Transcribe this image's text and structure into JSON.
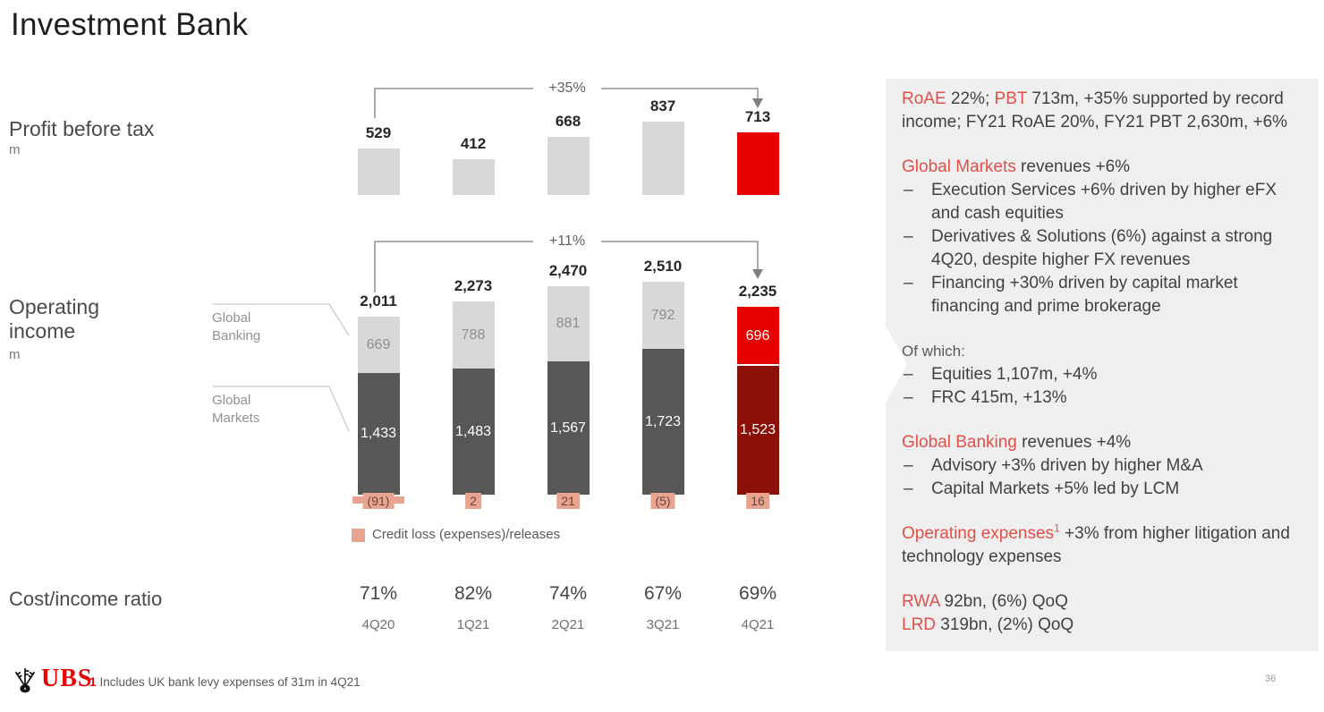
{
  "slide": {
    "title": "Investment Bank",
    "page_number": "36"
  },
  "colors": {
    "bar_gray": "#d8d8d8",
    "bar_dark_gray": "#575757",
    "bar_red": "#e60000",
    "bar_dark_red": "#8a1008",
    "salmon": "#e9a48f",
    "panel_bg": "#efefef",
    "accent_text_red": "#e0514a"
  },
  "left_labels": {
    "pbt": "Profit before tax",
    "pbt_unit": "m",
    "oi_line1": "Operating",
    "oi_line2": "income",
    "oi_unit": "m"
  },
  "series_callouts": {
    "gb": [
      "Global",
      "Banking"
    ],
    "gm": [
      "Global",
      "Markets"
    ]
  },
  "chart_data": [
    {
      "type": "bar",
      "name": "profit_before_tax",
      "title": "Profit before tax",
      "unit": "m",
      "categories": [
        "4Q20",
        "1Q21",
        "2Q21",
        "3Q21",
        "4Q21"
      ],
      "values": [
        529,
        412,
        668,
        837,
        713
      ],
      "value_labels": [
        "529",
        "412",
        "668",
        "837",
        "713"
      ],
      "highlight_index": 4,
      "annotation": "+35%",
      "annotation_span": [
        "4Q20",
        "4Q21"
      ]
    },
    {
      "type": "stacked-bar",
      "name": "operating_income",
      "title": "Operating income",
      "unit": "m",
      "categories": [
        "4Q20",
        "1Q21",
        "2Q21",
        "3Q21",
        "4Q21"
      ],
      "series": [
        {
          "name": "Global Markets",
          "values": [
            1433,
            1483,
            1567,
            1723,
            1523
          ],
          "labels": [
            "1,433",
            "1,483",
            "1,567",
            "1,723",
            "1,523"
          ]
        },
        {
          "name": "Global Banking",
          "values": [
            669,
            788,
            881,
            792,
            696
          ],
          "labels": [
            "669",
            "788",
            "881",
            "792",
            "696"
          ]
        }
      ],
      "totals": [
        2011,
        2273,
        2470,
        2510,
        2235
      ],
      "total_labels": [
        "2,011",
        "2,273",
        "2,470",
        "2,510",
        "2,235"
      ],
      "highlight_index": 4,
      "annotation": "+11%",
      "annotation_span": [
        "4Q20",
        "4Q21"
      ],
      "credit_loss": {
        "labels": [
          "(91)",
          "2",
          "21",
          "(5)",
          "16"
        ],
        "legend": "Credit loss (expenses)/releases"
      }
    },
    {
      "type": "table",
      "name": "cost_income_ratio",
      "title": "Cost/income ratio",
      "categories": [
        "4Q20",
        "1Q21",
        "2Q21",
        "3Q21",
        "4Q21"
      ],
      "values": [
        "71%",
        "82%",
        "74%",
        "67%",
        "69%"
      ]
    }
  ],
  "panel": {
    "bullet_char": "–",
    "blocks": [
      {
        "style": "para",
        "space": false,
        "segments": [
          {
            "text": "RoAE",
            "red": true
          },
          {
            "text": " 22%; "
          },
          {
            "text": "PBT",
            "red": true
          },
          {
            "text": " 713m, +35% supported by record income; FY21 RoAE 20%, FY21 PBT 2,630m, +6%"
          }
        ]
      },
      {
        "style": "para",
        "space": true,
        "segments": [
          {
            "text": "Global Markets",
            "red": true
          },
          {
            "text": " revenues +6%"
          }
        ]
      },
      {
        "style": "bullets",
        "space": false,
        "items": [
          "Execution Services +6% driven by higher eFX and cash equities",
          "Derivatives & Solutions (6%) against a strong 4Q20, despite higher FX revenues",
          "Financing +30% driven by capital market financing and prime brokerage"
        ]
      },
      {
        "style": "small",
        "space": true,
        "segments": [
          {
            "text": "Of which:"
          }
        ]
      },
      {
        "style": "bullets",
        "space": false,
        "items": [
          "Equities 1,107m, +4%",
          "FRC 415m, +13%"
        ]
      },
      {
        "style": "para",
        "space": true,
        "segments": [
          {
            "text": "Global Banking",
            "red": true
          },
          {
            "text": " revenues +4%"
          }
        ]
      },
      {
        "style": "bullets",
        "space": false,
        "items": [
          "Advisory +3% driven by higher M&A",
          "Capital Markets +5% led by LCM"
        ]
      },
      {
        "style": "para",
        "space": true,
        "segments": [
          {
            "text": "Operating expenses",
            "red": true
          },
          {
            "text": "1",
            "red": true,
            "sup": true
          },
          {
            "text": " +3% from higher litigation and technology expenses"
          }
        ]
      },
      {
        "style": "para",
        "space": true,
        "segments": [
          {
            "text": "RWA",
            "red": true
          },
          {
            "text": " 92bn, (6%) QoQ"
          }
        ]
      },
      {
        "style": "para",
        "space": false,
        "segments": [
          {
            "text": "LRD",
            "red": true
          },
          {
            "text": " 319bn, (2%) QoQ"
          }
        ]
      }
    ]
  },
  "footer": {
    "logo_text": "UBS",
    "note_number": "1",
    "note_text": "Includes UK bank levy expenses of 31m in 4Q21"
  }
}
